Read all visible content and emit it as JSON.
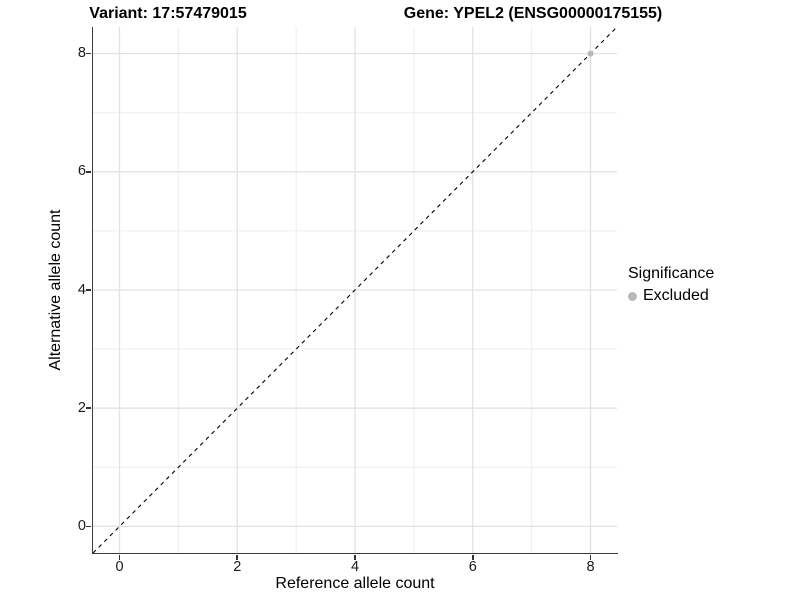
{
  "titles": {
    "variant": "Variant: 17:57479015",
    "gene": "Gene: YPEL2 (ENSG00000175155)"
  },
  "chart_data": {
    "type": "scatter",
    "title_left": "Variant: 17:57479015",
    "title_right": "Gene: YPEL2 (ENSG00000175155)",
    "xlabel": "Reference allele count",
    "ylabel": "Alternative allele count",
    "xlim": [
      -0.45,
      8.45
    ],
    "ylim": [
      -0.45,
      8.45
    ],
    "x_ticks": [
      0,
      2,
      4,
      6,
      8
    ],
    "y_ticks": [
      0,
      2,
      4,
      6,
      8
    ],
    "x_minor_ticks": [
      1,
      3,
      5,
      7
    ],
    "y_minor_ticks": [
      1,
      3,
      5,
      7
    ],
    "grid": "on",
    "background": "#ffffff",
    "gridline_major_color": "#e2e2e2",
    "gridline_minor_color": "#eeeeee",
    "reference_line": {
      "type": "identity",
      "style": "dashed",
      "color": "#000000"
    },
    "series": [
      {
        "name": "Excluded",
        "color": "#b8b8b8",
        "points": [
          [
            8,
            8
          ]
        ]
      }
    ],
    "legend": {
      "title": "Significance",
      "position": "right",
      "items": [
        {
          "label": "Excluded",
          "color": "#b8b8b8"
        }
      ]
    }
  }
}
